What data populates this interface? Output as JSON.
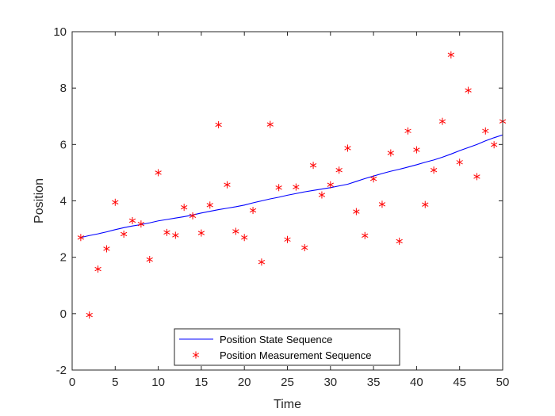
{
  "chart_data": {
    "type": "line",
    "xlabel": "Time",
    "ylabel": "Position",
    "xlim": [
      0,
      50
    ],
    "ylim": [
      -2,
      10
    ],
    "xticks": [
      0,
      5,
      10,
      15,
      20,
      25,
      30,
      35,
      40,
      45,
      50
    ],
    "yticks": [
      -2,
      0,
      2,
      4,
      6,
      8,
      10
    ],
    "grid": false,
    "legend_position": "bottom-center",
    "series": [
      {
        "name": "Position State Sequence",
        "kind": "line",
        "color": "#0000ff",
        "x": [
          1,
          2,
          3,
          4,
          5,
          6,
          7,
          8,
          9,
          10,
          11,
          12,
          13,
          14,
          15,
          16,
          17,
          18,
          19,
          20,
          21,
          22,
          23,
          24,
          25,
          26,
          27,
          28,
          29,
          30,
          31,
          32,
          33,
          34,
          35,
          36,
          37,
          38,
          39,
          40,
          41,
          42,
          43,
          44,
          45,
          46,
          47,
          48,
          49,
          50
        ],
        "values": [
          2.7,
          2.77,
          2.83,
          2.9,
          2.98,
          3.05,
          3.11,
          3.16,
          3.22,
          3.29,
          3.34,
          3.39,
          3.44,
          3.5,
          3.57,
          3.63,
          3.69,
          3.74,
          3.79,
          3.85,
          3.93,
          4.0,
          4.07,
          4.13,
          4.2,
          4.26,
          4.32,
          4.37,
          4.42,
          4.47,
          4.53,
          4.59,
          4.69,
          4.79,
          4.88,
          4.97,
          5.05,
          5.12,
          5.2,
          5.28,
          5.37,
          5.45,
          5.55,
          5.66,
          5.78,
          5.89,
          6.0,
          6.13,
          6.24,
          6.34
        ]
      },
      {
        "name": "Position Measurement Sequence",
        "kind": "scatter",
        "marker": "*",
        "color": "#ff0000",
        "x": [
          1,
          2,
          3,
          4,
          5,
          6,
          7,
          8,
          9,
          10,
          11,
          12,
          13,
          14,
          15,
          16,
          17,
          18,
          19,
          20,
          21,
          22,
          23,
          24,
          25,
          26,
          27,
          28,
          29,
          30,
          31,
          32,
          33,
          34,
          35,
          36,
          37,
          38,
          39,
          40,
          41,
          42,
          43,
          44,
          45,
          46,
          47,
          48,
          49,
          50
        ],
        "values": [
          2.7,
          -0.05,
          1.58,
          2.3,
          3.95,
          2.82,
          3.3,
          3.18,
          1.92,
          5.0,
          2.88,
          2.78,
          3.77,
          3.47,
          2.86,
          3.85,
          6.7,
          4.57,
          2.92,
          2.7,
          3.66,
          1.83,
          6.71,
          4.47,
          2.63,
          4.49,
          2.34,
          5.26,
          4.21,
          4.57,
          5.09,
          5.87,
          3.62,
          2.77,
          4.78,
          3.88,
          5.7,
          2.57,
          6.48,
          5.81,
          3.87,
          5.09,
          6.82,
          9.18,
          5.37,
          7.92,
          4.86,
          6.48,
          5.99,
          6.82
        ]
      }
    ]
  }
}
